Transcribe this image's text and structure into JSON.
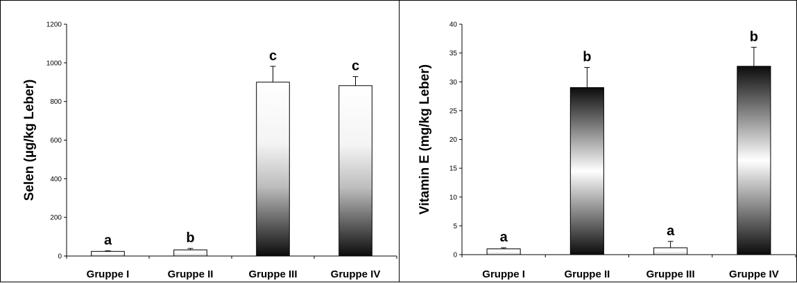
{
  "chart_data": [
    {
      "type": "bar",
      "title": "",
      "xlabel": "",
      "ylabel": "Selen (µg/kg Leber)",
      "ylim": [
        0,
        1200
      ],
      "yticks": [
        0,
        200,
        400,
        600,
        800,
        1000,
        1200
      ],
      "categories": [
        "Gruppe I",
        "Gruppe II",
        "Gruppe III",
        "Gruppe IV"
      ],
      "values": [
        24,
        32,
        900,
        882
      ],
      "errors": [
        3,
        7,
        82,
        47
      ],
      "significance": [
        "a",
        "b",
        "c",
        "c"
      ],
      "bar_fill": [
        "light",
        "light",
        "dark-bottom gradient",
        "dark-bottom gradient"
      ],
      "grid": false
    },
    {
      "type": "bar",
      "title": "",
      "xlabel": "",
      "ylabel": "Vitamin E (mg/kg Leber)",
      "ylim": [
        0,
        40
      ],
      "yticks": [
        0,
        5,
        10,
        15,
        20,
        25,
        30,
        35,
        40
      ],
      "categories": [
        "Gruppe I",
        "Gruppe II",
        "Gruppe III",
        "Gruppe IV"
      ],
      "values": [
        1.0,
        29.0,
        1.2,
        32.7
      ],
      "errors": [
        0.2,
        3.5,
        1.1,
        3.3
      ],
      "significance": [
        "a",
        "b",
        "a",
        "b"
      ],
      "bar_fill": [
        "light",
        "dark-ends gradient",
        "light",
        "dark-ends gradient"
      ],
      "grid": false
    }
  ]
}
